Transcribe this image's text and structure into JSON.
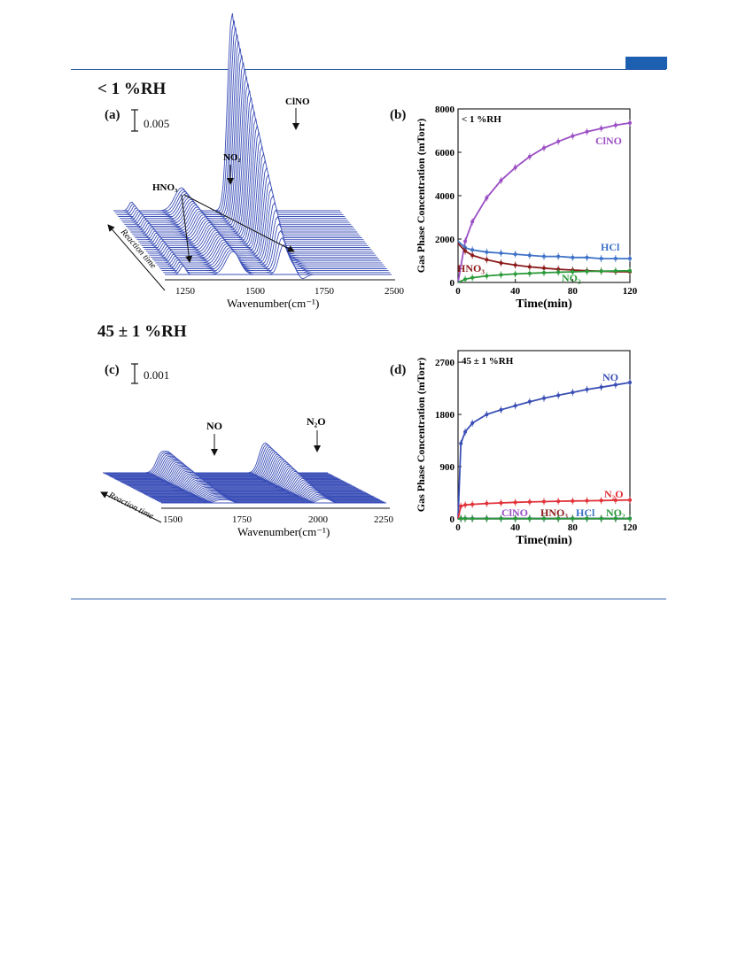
{
  "page": {
    "accent_color": "#1d5fb0",
    "header_top": "< 1 %RH",
    "header_bottom": "45 ± 1 %RH"
  },
  "panel_a": {
    "label": "(a)",
    "scale_bar": "0.005",
    "xlabel": "Wavenumber(cm⁻¹)",
    "yaxis_arrow_label": "Reaction time",
    "ticks": [
      "1250",
      "1500",
      "1750",
      "2500"
    ],
    "annotations": [
      "ClNO",
      "NO₂",
      "HNO₃"
    ],
    "line_color": "#3b4fb8"
  },
  "panel_c": {
    "label": "(c)",
    "scale_bar": "0.001",
    "xlabel": "Wavenumber(cm⁻¹)",
    "yaxis_arrow_label": "Reaction time",
    "ticks": [
      "1500",
      "1750",
      "2000",
      "2250"
    ],
    "annotations": [
      "NO",
      "N₂O"
    ],
    "line_color": "#3b4fb8"
  },
  "chart_data": [
    {
      "type": "scatter",
      "panel": "(b)",
      "annotation": "< 1 %RH",
      "xlabel": "Time(min)",
      "ylabel": "Gas Phase Concentration (mTorr)",
      "xlim": [
        0,
        120
      ],
      "ylim": [
        0,
        8000
      ],
      "xticks": [
        0,
        40,
        80,
        120
      ],
      "yticks": [
        0,
        2000,
        4000,
        6000,
        8000
      ],
      "x": [
        0,
        5,
        10,
        20,
        30,
        40,
        50,
        60,
        70,
        80,
        90,
        100,
        110,
        120
      ],
      "series": [
        {
          "name": "ClNO",
          "color": "#9b4fc4",
          "values": [
            0,
            1900,
            2800,
            3900,
            4700,
            5300,
            5800,
            6200,
            6500,
            6750,
            6950,
            7100,
            7250,
            7350
          ]
        },
        {
          "name": "HCl",
          "color": "#3f73c8",
          "values": [
            1900,
            1600,
            1500,
            1400,
            1350,
            1300,
            1250,
            1200,
            1200,
            1150,
            1150,
            1100,
            1100,
            1100
          ]
        },
        {
          "name": "HNO₃",
          "color": "#8b1a1a",
          "values": [
            1800,
            1450,
            1250,
            1050,
            900,
            800,
            720,
            660,
            610,
            570,
            540,
            520,
            500,
            490
          ]
        },
        {
          "name": "NO₂",
          "color": "#2a9a3a",
          "values": [
            0,
            150,
            220,
            300,
            350,
            390,
            420,
            450,
            470,
            490,
            510,
            520,
            530,
            540
          ]
        }
      ]
    },
    {
      "type": "scatter",
      "panel": "(d)",
      "annotation": "45 ± 1 %RH",
      "xlabel": "Time(min)",
      "ylabel": "Gas Phase Concentration (mTorr)",
      "xlim": [
        0,
        120
      ],
      "ylim": [
        0,
        2900
      ],
      "xticks": [
        0,
        40,
        80,
        120
      ],
      "yticks": [
        0,
        900,
        1800,
        2700
      ],
      "x": [
        0,
        2,
        5,
        10,
        20,
        30,
        40,
        50,
        60,
        70,
        80,
        90,
        100,
        110,
        120
      ],
      "series": [
        {
          "name": "NO",
          "color": "#3a4fb5",
          "values": [
            0,
            1300,
            1500,
            1650,
            1800,
            1880,
            1950,
            2020,
            2080,
            2130,
            2180,
            2230,
            2270,
            2310,
            2350
          ]
        },
        {
          "name": "N₂O",
          "color": "#e2323a",
          "values": [
            0,
            220,
            240,
            250,
            265,
            275,
            285,
            292,
            298,
            303,
            308,
            312,
            316,
            320,
            325
          ]
        },
        {
          "name": "ClNO",
          "color": "#9b4fc4",
          "values": [
            0,
            5,
            5,
            5,
            5,
            5,
            5,
            5,
            5,
            5,
            5,
            5,
            5,
            5,
            5
          ]
        },
        {
          "name": "HNO₃",
          "color": "#8b1a1a",
          "values": [
            0,
            5,
            5,
            5,
            5,
            5,
            5,
            5,
            5,
            5,
            5,
            5,
            5,
            5,
            5
          ]
        },
        {
          "name": "HCl",
          "color": "#3f73c8",
          "values": [
            0,
            5,
            5,
            5,
            5,
            5,
            5,
            5,
            5,
            5,
            5,
            5,
            5,
            5,
            5
          ]
        },
        {
          "name": "NO₂",
          "color": "#2a9a3a",
          "values": [
            0,
            5,
            5,
            5,
            5,
            5,
            5,
            5,
            5,
            5,
            5,
            5,
            5,
            5,
            5
          ]
        }
      ]
    }
  ]
}
